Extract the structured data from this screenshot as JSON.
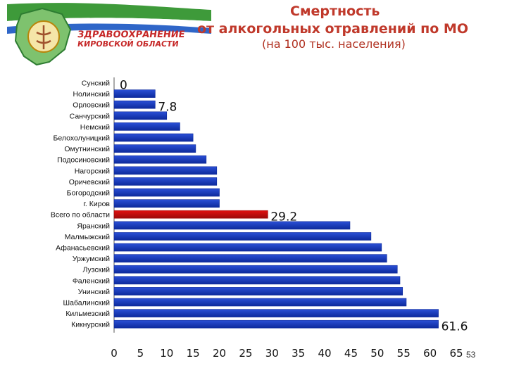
{
  "header": {
    "title_line1": "Смертность",
    "title_line2": "от алкогольных отравлений по МО",
    "title_line3": "(на 100 тыс. населения)",
    "logo_line1": "ЗДРАВООХРАНЕНИЕ",
    "logo_line2": "КИРОВСКОЙ ОБЛАСТИ",
    "page_number": "53"
  },
  "colors": {
    "bar": "#2a4fd6",
    "bar_dark": "#0d2a9c",
    "highlight": "#e01010",
    "highlight_dark": "#9c0a0a",
    "title": "#c0392b",
    "banner_green": "#3e9a3a"
  },
  "chart_data": {
    "type": "bar",
    "orientation": "horizontal",
    "categories": [
      "Сунский",
      "Нолинский",
      "Орловский",
      "Санчурский",
      "Немский",
      "Белохолуницкий",
      "Омутнинский",
      "Подосиновский",
      "Нагорский",
      "Оричевский",
      "Богородский",
      "г. Киров",
      "Всего по области",
      "Яранский",
      "Малмыжский",
      "Афанасьевский",
      "Уржумский",
      "Лузский",
      "Фаленский",
      "Унинский",
      "Шабалинский",
      "Кильмезский",
      "Кикнурский"
    ],
    "values": [
      0,
      7.8,
      7.8,
      10,
      12.5,
      15,
      15.5,
      17.5,
      19.5,
      19.5,
      20,
      20,
      29.2,
      44.8,
      48.8,
      50.8,
      51.8,
      53.8,
      54.3,
      54.8,
      55.5,
      61.6,
      61.6
    ],
    "highlight_category": "Всего по области",
    "data_labels": [
      {
        "index": 0,
        "text": "0"
      },
      {
        "index": 2,
        "text": "7.8"
      },
      {
        "index": 12,
        "text": "29.2"
      },
      {
        "index": 22,
        "text": "61.6"
      }
    ],
    "xlim": [
      0,
      65
    ],
    "xticks": [
      0,
      5,
      10,
      15,
      20,
      25,
      30,
      35,
      40,
      45,
      50,
      55,
      60,
      65
    ],
    "grid": false,
    "legend": "none"
  }
}
